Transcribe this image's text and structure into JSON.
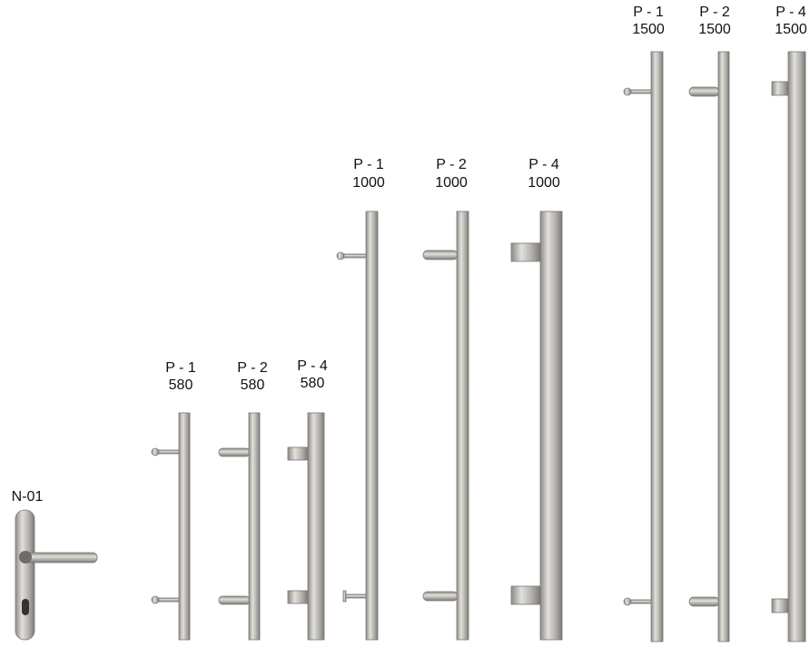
{
  "items": [
    {
      "model": "N-01"
    },
    {
      "model": "P - 1",
      "length": 580
    },
    {
      "model": "P - 2",
      "length": 580
    },
    {
      "model": "P - 4",
      "length": 580
    },
    {
      "model": "P - 1",
      "length": 1000
    },
    {
      "model": "P - 2",
      "length": 1000
    },
    {
      "model": "P - 4",
      "length": 1000
    },
    {
      "model": "P - 1",
      "length": 1500
    },
    {
      "model": "P - 2",
      "length": 1500
    },
    {
      "model": "P - 4",
      "length": 1500
    }
  ]
}
